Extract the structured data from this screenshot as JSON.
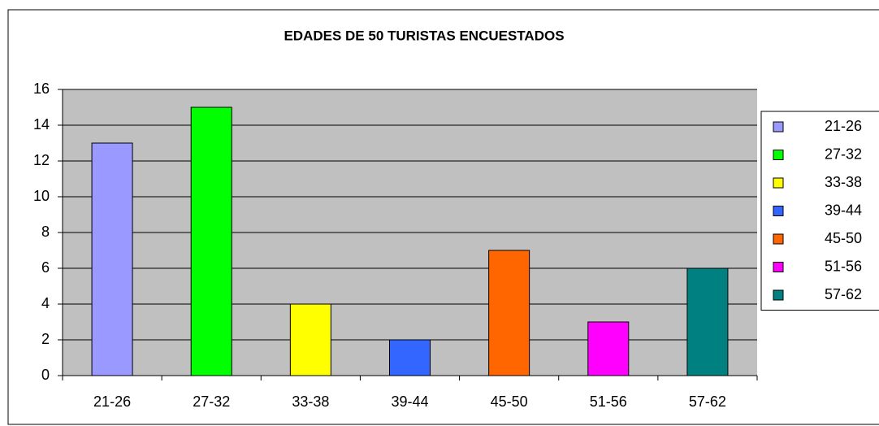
{
  "chart_data": {
    "type": "bar",
    "title": "EDADES DE 50 TURISTAS ENCUESTADOS",
    "categories": [
      "21-26",
      "27-32",
      "33-38",
      "39-44",
      "45-50",
      "51-56",
      "57-62"
    ],
    "values": [
      13,
      15,
      4,
      2,
      7,
      3,
      6
    ],
    "colors": [
      "#9999ff",
      "#00ff00",
      "#ffff00",
      "#3366ff",
      "#ff6600",
      "#ff00ff",
      "#008080"
    ],
    "ylim": [
      0,
      16
    ],
    "yticks": [
      0,
      2,
      4,
      6,
      8,
      10,
      12,
      14,
      16
    ],
    "grid": true,
    "legend": "right"
  }
}
